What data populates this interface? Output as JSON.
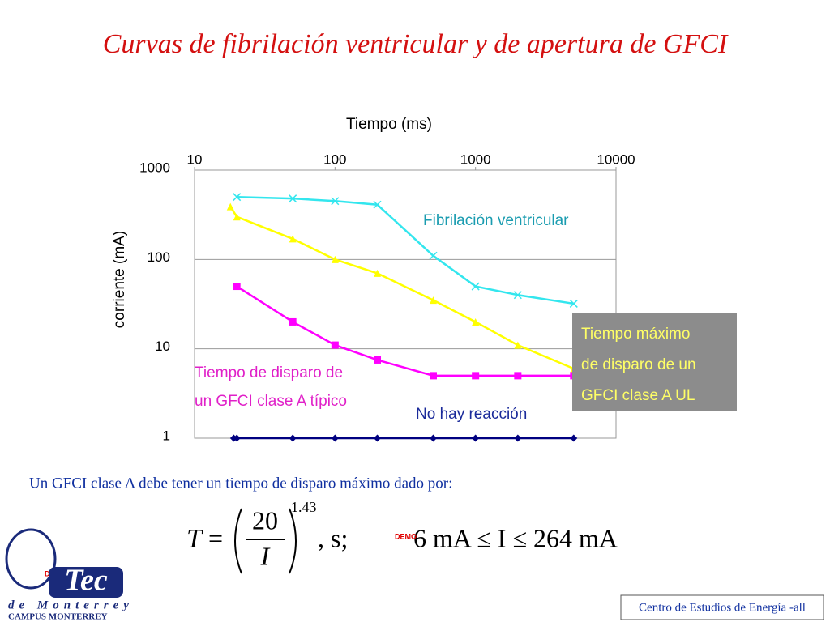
{
  "title": "Curvas de fibrilación ventricular y de apertura de GFCI",
  "chart_data": {
    "type": "line",
    "xlabel": "Tiempo (ms)",
    "ylabel": "corriente (mA)",
    "xscale": "log",
    "yscale": "log",
    "xlim": [
      10,
      10000
    ],
    "ylim": [
      1,
      1000
    ],
    "xticks": [
      10,
      100,
      1000,
      10000
    ],
    "yticks": [
      1,
      10,
      100,
      1000
    ],
    "grid": true,
    "series": [
      {
        "name": "Fibrilación ventricular",
        "color": "#33e6ee",
        "marker": "x",
        "x": [
          20,
          50,
          100,
          200,
          500,
          1000,
          2000,
          5000
        ],
        "values": [
          500,
          480,
          450,
          410,
          110,
          50,
          40,
          32
        ]
      },
      {
        "name": "Tiempo máximo de disparo de un GFCI clase A UL",
        "color": "#ffff00",
        "marker": "triangle",
        "x": [
          18,
          20,
          50,
          100,
          200,
          500,
          1000,
          2000,
          5000
        ],
        "values": [
          390,
          300,
          170,
          100,
          70,
          35,
          20,
          11,
          6
        ]
      },
      {
        "name": "Tiempo de disparo de un GFCI clase A típico",
        "color": "#ff00ff",
        "marker": "square",
        "x": [
          20,
          50,
          100,
          200,
          500,
          1000,
          2000,
          5000
        ],
        "values": [
          50,
          20,
          11,
          7.5,
          5,
          5,
          5,
          5
        ]
      },
      {
        "name": "No hay reacción",
        "color": "#000080",
        "marker": "diamond",
        "x": [
          19,
          20,
          50,
          100,
          200,
          500,
          1000,
          2000,
          5000
        ],
        "values": [
          1,
          1,
          1,
          1,
          1,
          1,
          1,
          1,
          1
        ]
      }
    ],
    "annotations": [
      {
        "lines": [
          "Fibrilación ventricular"
        ]
      },
      {
        "lines": [
          "Tiempo máximo",
          "de disparo de un",
          "GFCI clase A UL"
        ]
      },
      {
        "lines": [
          "Tiempo de disparo de",
          "un GFCI clase A típico"
        ]
      },
      {
        "lines": [
          "No hay reacción"
        ]
      }
    ]
  },
  "caption": "Un GFCI clase A debe tener un tiempo de disparo máximo dado por:",
  "formula": {
    "lhs": "T",
    "eq": "=",
    "numerator": "20",
    "denominator": "I",
    "exponent": "1.43",
    "unit": ", s;",
    "range": "6 mA ≤ I ≤ 264 mA"
  },
  "demo": [
    "DEMO",
    "DEMO"
  ],
  "logo": {
    "name": "Tec",
    "city": "de Monterrey",
    "campus": "CAMPUS MONTERREY"
  },
  "footer": "Centro de Estudios de Energía -all"
}
